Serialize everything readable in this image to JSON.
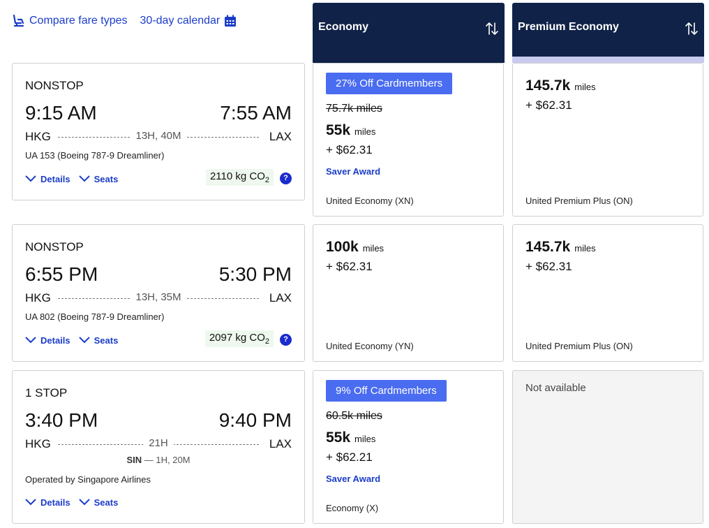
{
  "toolbar": {
    "compare_label": "Compare fare types",
    "calendar_label": "30-day calendar"
  },
  "columns": [
    {
      "label": "Economy"
    },
    {
      "label": "Premium Economy"
    }
  ],
  "flights": [
    {
      "stops": "NONSTOP",
      "depart_time": "9:15 AM",
      "arrive_time": "7:55 AM",
      "origin": "HKG",
      "destination": "LAX",
      "duration": "13H, 40M",
      "flight_info": "UA 153 (Boeing 787-9 Dreamliner)",
      "co2": "2110 kg CO",
      "co2_sub": "2",
      "details_label": "Details",
      "seats_label": "Seats",
      "help": "?",
      "economy": {
        "badge": "27% Off Cardmembers",
        "original_miles": "75.7k miles",
        "miles": "55k",
        "miles_unit": "miles",
        "tax": "+ $62.31",
        "saver": "Saver Award",
        "cabin": "United Economy (XN)"
      },
      "premium": {
        "miles": "145.7k",
        "miles_unit": "miles",
        "tax": "+ $62.31",
        "cabin": "United Premium Plus (ON)"
      }
    },
    {
      "stops": "NONSTOP",
      "depart_time": "6:55 PM",
      "arrive_time": "5:30 PM",
      "origin": "HKG",
      "destination": "LAX",
      "duration": "13H, 35M",
      "flight_info": "UA 802 (Boeing 787-9 Dreamliner)",
      "co2": "2097 kg CO",
      "co2_sub": "2",
      "details_label": "Details",
      "seats_label": "Seats",
      "help": "?",
      "economy": {
        "miles": "100k",
        "miles_unit": "miles",
        "tax": "+ $62.31",
        "cabin": "United Economy (YN)"
      },
      "premium": {
        "miles": "145.7k",
        "miles_unit": "miles",
        "tax": "+ $62.31",
        "cabin": "United Premium Plus (ON)"
      }
    },
    {
      "stops": "1 STOP",
      "depart_time": "3:40 PM",
      "arrive_time": "9:40 PM",
      "origin": "HKG",
      "destination": "LAX",
      "duration": "21H",
      "layover_airport": "SIN",
      "layover_duration": " — 1H, 20M",
      "operated_by": "Operated by Singapore Airlines",
      "details_label": "Details",
      "seats_label": "Seats",
      "economy": {
        "badge": "9% Off Cardmembers",
        "original_miles": "60.5k miles",
        "miles": "55k",
        "miles_unit": "miles",
        "tax": "+ $62.21",
        "saver": "Saver Award",
        "cabin": "Economy (X)"
      },
      "premium": {
        "unavailable": "Not available"
      }
    }
  ],
  "colors": {
    "header_bg": "#102248",
    "link": "#1a3cc9",
    "badge": "#4a6cf0",
    "selected_bar": "#c8cbee"
  },
  "icons": [
    "seat-icon",
    "calendar-icon",
    "sort-icon",
    "chevron-down-icon",
    "help-icon"
  ]
}
